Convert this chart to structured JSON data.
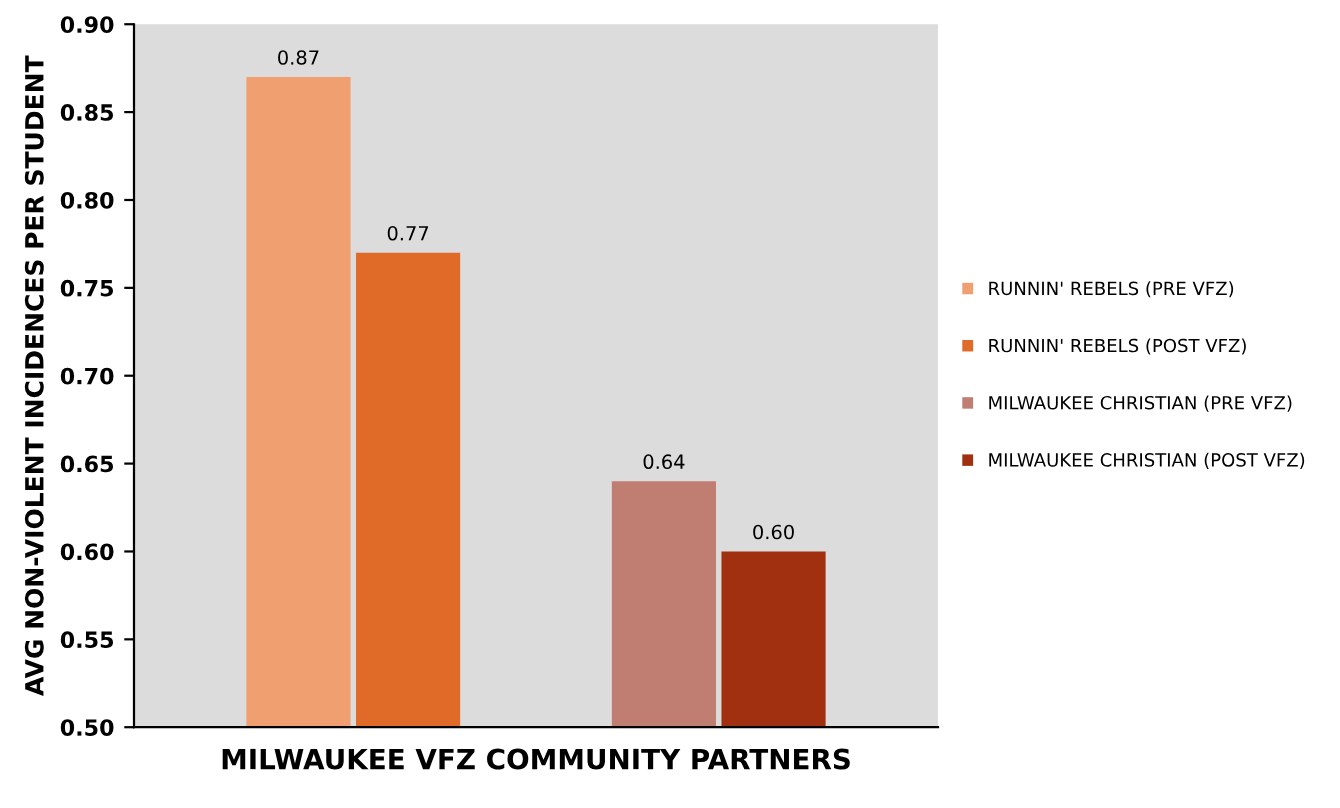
{
  "chart_data": {
    "type": "bar",
    "xlabel": "MILWAUKEE VFZ COMMUNITY PARTNERS",
    "ylabel": "AVG NON-VIOLENT INCIDENCES PER STUDENT",
    "categories": [
      null,
      null
    ],
    "series": [
      {
        "name": "RUNNIN' REBELS (PRE VFZ)",
        "color": "#f0a070",
        "values": [
          0.87,
          null
        ],
        "value_labels": [
          "0.87",
          null
        ]
      },
      {
        "name": "RUNNIN' REBELS (POST VFZ)",
        "color": "#e06a28",
        "values": [
          0.77,
          null
        ],
        "value_labels": [
          "0.77",
          null
        ]
      },
      {
        "name": "MILWAUKEE CHRISTIAN (PRE VFZ)",
        "color": "#c07e72",
        "values": [
          null,
          0.64
        ],
        "value_labels": [
          null,
          "0.64"
        ]
      },
      {
        "name": "MILWAUKEE CHRISTIAN (POST VFZ)",
        "color": "#a0300f",
        "values": [
          null,
          0.6
        ],
        "value_labels": [
          null,
          "0.60"
        ]
      }
    ],
    "ylim": [
      0.5,
      0.9
    ],
    "yticks": [
      {
        "value": 0.5,
        "label": "0.50"
      },
      {
        "value": 0.55,
        "label": "0.55"
      },
      {
        "value": 0.6,
        "label": "0.60"
      },
      {
        "value": 0.65,
        "label": "0.65"
      },
      {
        "value": 0.7,
        "label": "0.70"
      },
      {
        "value": 0.75,
        "label": "0.75"
      },
      {
        "value": 0.8,
        "label": "0.80"
      },
      {
        "value": 0.85,
        "label": "0.85"
      },
      {
        "value": 0.9,
        "label": "0.90"
      }
    ],
    "legend": "right",
    "grid": false
  }
}
